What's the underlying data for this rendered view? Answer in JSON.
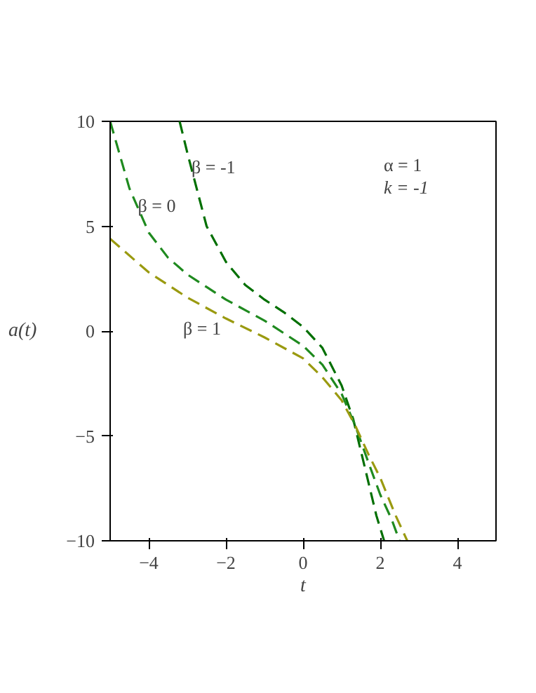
{
  "chart_data": {
    "type": "line",
    "xlabel": "t",
    "ylabel": "a(t)",
    "xlim": [
      -5,
      5
    ],
    "ylim": [
      -10,
      10
    ],
    "xticks": [
      -4,
      -2,
      0,
      2,
      4
    ],
    "yticks": [
      -10,
      -5,
      0,
      5,
      10
    ],
    "grid": false,
    "legend": false,
    "line_style": "dashed",
    "marker": "none",
    "series": [
      {
        "name": "β = -1",
        "color": "#006f00",
        "x": [
          -3.2,
          -3.0,
          -2.5,
          -2,
          -1.5,
          -1,
          -0.5,
          0,
          0.5,
          1,
          1.3,
          1.6,
          1.9,
          2.1
        ],
        "values": [
          10,
          8.5,
          5,
          3.3,
          2.2,
          1.5,
          0.9,
          0.2,
          -0.8,
          -2.6,
          -4.2,
          -6.5,
          -8.8,
          -10
        ]
      },
      {
        "name": "β = 0",
        "color": "#1f8a1f",
        "x": [
          -5,
          -4.5,
          -4,
          -3.5,
          -3,
          -2.5,
          -2,
          -1.5,
          -1,
          -0.5,
          0,
          0.5,
          1,
          1.35,
          1.7,
          2,
          2.3,
          2.5
        ],
        "values": [
          10,
          6.8,
          4.7,
          3.5,
          2.7,
          2.1,
          1.5,
          1.0,
          0.5,
          -0.1,
          -0.7,
          -1.6,
          -3.0,
          -4.5,
          -6.3,
          -7.8,
          -9,
          -10
        ]
      },
      {
        "name": "β = 1",
        "color": "#9a9a10",
        "x": [
          -5,
          -4,
          -3,
          -2,
          -1,
          0,
          0.5,
          1,
          1.35,
          1.7,
          2,
          2.4,
          2.7
        ],
        "values": [
          4.4,
          2.8,
          1.6,
          0.6,
          -0.3,
          -1.3,
          -2.2,
          -3.3,
          -4.5,
          -5.9,
          -7,
          -8.8,
          -10
        ]
      }
    ],
    "annotations": [
      "α = 1",
      "k = -1"
    ]
  }
}
